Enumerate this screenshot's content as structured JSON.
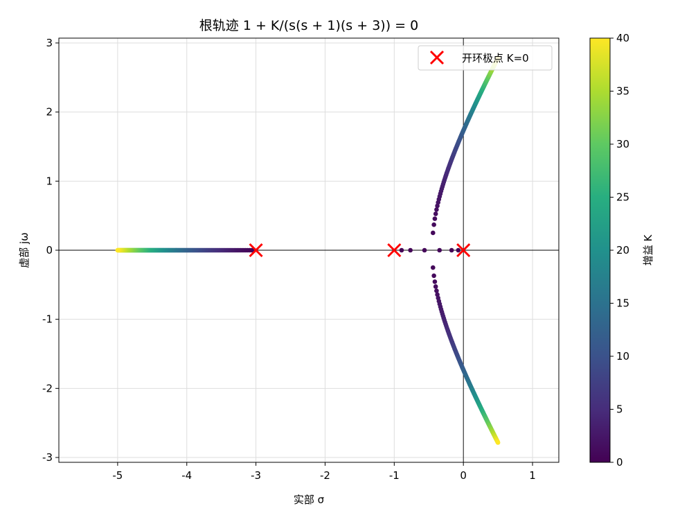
{
  "chart_data": {
    "type": "scatter",
    "title": "根轨迹  1 + K/(s(s + 1)(s + 3)) = 0",
    "xlabel": "实部 σ",
    "ylabel": "虚部 jω",
    "xlim": [
      -5.85,
      1.38
    ],
    "ylim": [
      -3.07,
      3.07
    ],
    "x_ticks": [
      -5,
      -4,
      -3,
      -2,
      -1,
      0,
      1
    ],
    "x_tick_labels": [
      "-5",
      "-4",
      "-3",
      "-2",
      "-1",
      "0",
      "1"
    ],
    "y_ticks": [
      -3,
      -2,
      -1,
      0,
      1,
      2,
      3
    ],
    "y_tick_labels": [
      "-3",
      "-2",
      "-1",
      "0",
      "1",
      "2",
      "3"
    ],
    "grid": true,
    "legend": {
      "position": "top-right",
      "entries": [
        "开环极点 K=0"
      ]
    },
    "colorbar": {
      "label": "增益 K",
      "range": [
        0,
        40
      ],
      "ticks": [
        0,
        5,
        10,
        15,
        20,
        25,
        30,
        35,
        40
      ],
      "tick_labels": [
        "0",
        "5",
        "10",
        "15",
        "20",
        "25",
        "30",
        "35",
        "40"
      ],
      "colormap": "viridis"
    },
    "series": [
      {
        "name": "开环极点 K=0",
        "marker": "x",
        "color": "#ff0000",
        "x": [
          0,
          -1,
          -3
        ],
        "y": [
          0,
          0,
          0
        ]
      }
    ],
    "locus": {
      "k_range": [
        0,
        40
      ],
      "k_step": 0.2,
      "characteristic_polynomial_coefficients": [
        1,
        4,
        3
      ],
      "marker_color_map": "viridis"
    }
  }
}
